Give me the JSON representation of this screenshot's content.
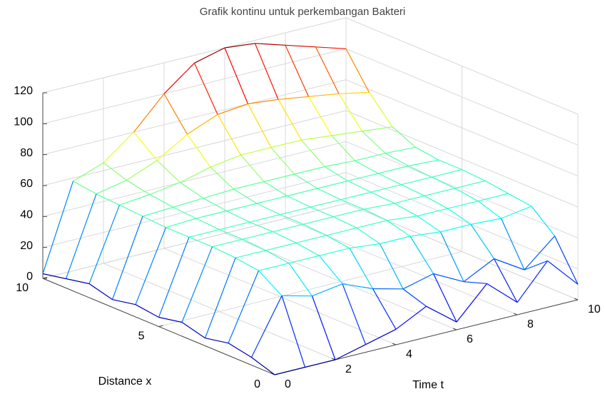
{
  "chart_data": {
    "type": "mesh3d",
    "title": "Grafik kontinu untuk perkembangan Bakteri",
    "xlabel": "Distance x",
    "ylabel": "Time t",
    "x": [
      0,
      1,
      2,
      3,
      4,
      5,
      6,
      7,
      8,
      9,
      10
    ],
    "y": [
      0,
      1,
      2,
      3,
      4,
      5,
      6,
      7,
      8,
      9,
      10
    ],
    "z": [
      [
        0,
        5,
        8,
        5,
        9,
        6,
        8,
        5,
        9,
        6,
        3
      ],
      [
        0,
        40,
        50,
        52,
        53,
        53,
        53,
        54,
        55,
        56,
        58
      ],
      [
        0,
        35,
        50,
        52,
        53,
        53,
        54,
        55,
        57,
        60,
        65
      ],
      [
        5,
        38,
        50,
        52,
        53,
        53,
        54,
        56,
        60,
        68,
        80
      ],
      [
        10,
        30,
        50,
        52,
        53,
        53,
        54,
        57,
        65,
        80,
        100
      ],
      [
        20,
        25,
        48,
        52,
        53,
        53,
        54,
        57,
        68,
        88,
        115
      ],
      [
        5,
        30,
        48,
        52,
        53,
        53,
        54,
        57,
        68,
        90,
        120
      ],
      [
        25,
        20,
        46,
        50,
        52,
        53,
        54,
        57,
        68,
        88,
        118
      ],
      [
        8,
        30,
        46,
        50,
        52,
        53,
        54,
        56,
        66,
        85,
        112
      ],
      [
        30,
        18,
        45,
        50,
        52,
        53,
        54,
        56,
        64,
        82,
        106
      ],
      [
        10,
        35,
        48,
        50,
        52,
        53,
        53,
        55,
        62,
        78,
        100
      ]
    ],
    "xlim": [
      0,
      10
    ],
    "ylim": [
      0,
      10
    ],
    "zlim": [
      0,
      120
    ],
    "xticks": [
      0,
      5,
      10
    ],
    "yticks": [
      0,
      2,
      4,
      6,
      8,
      10
    ],
    "zticks": [
      0,
      20,
      40,
      60,
      80,
      100,
      120
    ],
    "grid": true
  }
}
